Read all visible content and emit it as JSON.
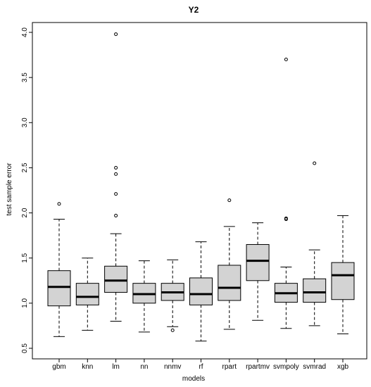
{
  "chart_data": {
    "type": "boxplot",
    "title": "Y2",
    "xlabel": "models",
    "ylabel": "test sample error",
    "ylim": [
      0.5,
      4.0
    ],
    "y_ticks": [
      0.5,
      1.0,
      1.5,
      2.0,
      2.5,
      3.0,
      3.5,
      4.0
    ],
    "y_tick_labels": [
      "0.5",
      "1.0",
      "1.5",
      "2.0",
      "2.5",
      "3.0",
      "3.5",
      "4.0"
    ],
    "grid": false,
    "categories": [
      "gbm",
      "knn",
      "lm",
      "nn",
      "nnmv",
      "rf",
      "rpart",
      "rpartmv",
      "svmpoly",
      "svmrad",
      "xgb"
    ],
    "boxes": [
      {
        "name": "gbm",
        "whisker_low": 0.63,
        "q1": 0.97,
        "median": 1.18,
        "q3": 1.36,
        "whisker_high": 1.93,
        "outliers": [
          2.1
        ]
      },
      {
        "name": "knn",
        "whisker_low": 0.7,
        "q1": 0.98,
        "median": 1.07,
        "q3": 1.22,
        "whisker_high": 1.5,
        "outliers": []
      },
      {
        "name": "lm",
        "whisker_low": 0.8,
        "q1": 1.12,
        "median": 1.25,
        "q3": 1.41,
        "whisker_high": 1.77,
        "outliers": [
          1.97,
          2.21,
          2.43,
          2.5,
          3.98
        ]
      },
      {
        "name": "nn",
        "whisker_low": 0.68,
        "q1": 1.0,
        "median": 1.1,
        "q3": 1.22,
        "whisker_high": 1.47,
        "outliers": []
      },
      {
        "name": "nnmv",
        "whisker_low": 0.74,
        "q1": 1.03,
        "median": 1.12,
        "q3": 1.22,
        "whisker_high": 1.48,
        "outliers": [
          0.7
        ]
      },
      {
        "name": "rf",
        "whisker_low": 0.58,
        "q1": 0.98,
        "median": 1.1,
        "q3": 1.28,
        "whisker_high": 1.68,
        "outliers": []
      },
      {
        "name": "rpart",
        "whisker_low": 0.71,
        "q1": 1.03,
        "median": 1.17,
        "q3": 1.42,
        "whisker_high": 1.85,
        "outliers": [
          2.14
        ]
      },
      {
        "name": "rpartmv",
        "whisker_low": 0.81,
        "q1": 1.25,
        "median": 1.47,
        "q3": 1.65,
        "whisker_high": 1.89,
        "outliers": []
      },
      {
        "name": "svmpoly",
        "whisker_low": 0.72,
        "q1": 1.01,
        "median": 1.11,
        "q3": 1.22,
        "whisker_high": 1.4,
        "outliers": [
          1.93,
          1.94,
          3.7
        ]
      },
      {
        "name": "svmrad",
        "whisker_low": 0.75,
        "q1": 1.01,
        "median": 1.12,
        "q3": 1.27,
        "whisker_high": 1.59,
        "outliers": [
          2.55
        ]
      },
      {
        "name": "xgb",
        "whisker_low": 0.66,
        "q1": 1.04,
        "median": 1.31,
        "q3": 1.45,
        "whisker_high": 1.97,
        "outliers": []
      }
    ],
    "colors": {
      "box_fill": "#d3d3d3",
      "stroke": "#000000"
    }
  }
}
